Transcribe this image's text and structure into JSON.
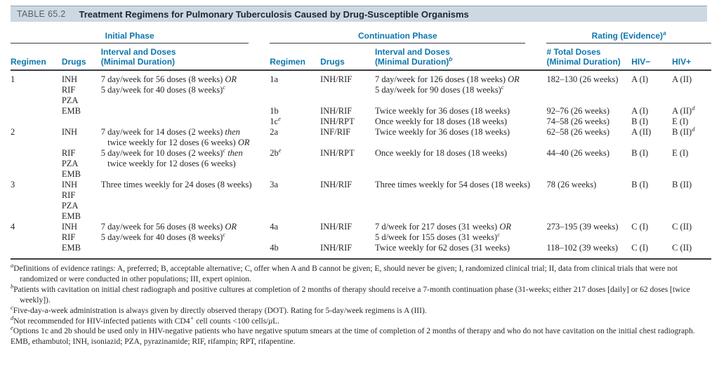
{
  "colors": {
    "c-blue": "#0e76ad",
    "c-band": "#ccd8e2",
    "c-band-border": "#8fa3b0",
    "c-dark": "#3a3f45",
    "c-title": "#1c2733",
    "c-label": "#56616b",
    "c-text": "#26262a"
  },
  "table": {
    "id_label": "TABLE 65.2",
    "title": "Treatment Regimens for Pulmonary Tuberculosis Caused by Drug-Susceptible Organisms",
    "groups": [
      {
        "label": "Initial Phase",
        "span": 3
      },
      {
        "label": "Continuation Phase",
        "span": 3
      },
      {
        "label": "Rating (Evidence)^{a}",
        "span": 3
      }
    ],
    "headers": [
      "Regimen",
      "Drugs",
      "Interval and Doses\n(Minimal Duration)",
      "Regimen",
      "Drugs",
      "Interval and Doses\n(Minimal Duration)^{b}",
      "# Total Doses\n(Minimal Duration)",
      "HIV−",
      "HIV+"
    ],
    "rows": [
      [
        "1",
        "INH",
        "7 day/week for 56 doses (8 weeks) *OR*",
        "1a",
        "INH/RIF",
        "7 day/week for 126 doses (18 weeks) *OR*",
        "182–130 (26 weeks)",
        "A (I)",
        "A (II)"
      ],
      [
        "",
        "RIF",
        "5 day/week for 40 doses (8 weeks)^{c}",
        "",
        "",
        "5 day/week for 90 doses (18 weeks)^{c}",
        "",
        "",
        ""
      ],
      [
        "",
        "PZA",
        "",
        "",
        "",
        "",
        "",
        "",
        ""
      ],
      [
        "",
        "EMB",
        "",
        "1b",
        "INH/RIF",
        "Twice weekly for 36 doses (18 weeks)",
        "92–76 (26 weeks)",
        "A (I)",
        "A (II)^{d}"
      ],
      [
        "",
        "",
        "",
        "1c^{e}",
        "INH/RPT",
        "Once weekly for 18 doses (18 weeks)",
        "74–58 (26 weeks)",
        "B (I)",
        "E (I)"
      ],
      [
        "2",
        "INH",
        "7 day/week for 14 doses (2 weeks) *then*",
        "2a",
        "INF/RIF",
        "Twice weekly for 36 doses (18 weeks)",
        "62–58 (26 weeks)",
        "A (II)",
        "B (II)^{d}"
      ],
      [
        "",
        "",
        "   twice weekly for 12 doses (6 weeks) *OR*",
        "",
        "",
        "",
        "",
        "",
        ""
      ],
      [
        "",
        "RIF",
        "5 day/week for 10 doses (2 weeks)^{c} *then*",
        "2b^{e}",
        "INH/RPT",
        "Once weekly for 18 doses (18 weeks)",
        "44–40 (26 weeks)",
        "B (I)",
        "E (I)"
      ],
      [
        "",
        "PZA",
        "   twice weekly for 12 doses (6 weeks)",
        "",
        "",
        "",
        "",
        "",
        ""
      ],
      [
        "",
        "EMB",
        "",
        "",
        "",
        "",
        "",
        "",
        ""
      ],
      [
        "3",
        "INH",
        "Three times weekly for 24 doses (8 weeks)",
        "3a",
        "INH/RIF",
        "Three times weekly for 54 doses (18 weeks)",
        "78 (26 weeks)",
        "B (I)",
        "B (II)"
      ],
      [
        "",
        "RIF",
        "",
        "",
        "",
        "",
        "",
        "",
        ""
      ],
      [
        "",
        "PZA",
        "",
        "",
        "",
        "",
        "",
        "",
        ""
      ],
      [
        "",
        "EMB",
        "",
        "",
        "",
        "",
        "",
        "",
        ""
      ],
      [
        "4",
        "INH",
        "7 day/week for 56 doses (8 weeks) *OR*",
        "4a",
        "INH/RIF",
        "7 d/week for 217 doses (31 weeks) *OR*",
        "273–195 (39 weeks)",
        "C (I)",
        "C (II)"
      ],
      [
        "",
        "RIF",
        "5 day/week for 40 doses (8 weeks)^{c}",
        "",
        "",
        "5 d/week for 155 doses (31 weeks)^{c}",
        "",
        "",
        ""
      ],
      [
        "",
        "EMB",
        "",
        "4b",
        "INH/RIF",
        "Twice weekly for 62 doses (31 weeks)",
        "118–102 (39 weeks)",
        "C (I)",
        "C (II)"
      ]
    ]
  },
  "footnotes": [
    {
      "marker": "a",
      "text": "Definitions of evidence ratings: A, preferred; B, acceptable alternative; C, offer when A and B cannot be given; E, should never be given; I, randomized clinical trial; II, data from clinical trials that were not randomized or were conducted in other populations; III, expert opinion."
    },
    {
      "marker": "b",
      "text": "Patients with cavitation on initial chest radiograph and positive cultures at completion of 2 months of therapy should receive a 7-month continuation phase (31-weeks; either 217 doses [daily] or 62 doses [twice weekly])."
    },
    {
      "marker": "c",
      "text": "Five-day-a-week administration is always given by directly observed therapy (DOT). Rating for 5-day/week regimens is A (III)."
    },
    {
      "marker": "d",
      "text": "Not recommended for HIV-infected patients with CD4^{+} cell counts <100 cells/*μ*L."
    },
    {
      "marker": "e",
      "text": "Options 1c and 2b should be used only in HIV-negative patients who have negative sputum smears at the time of completion of 2 months of therapy and who do not have cavitation on the initial chest radiograph."
    },
    {
      "marker": "",
      "text": "EMB, ethambutol; INH, isoniazid; PZA, pyrazinamide; RIF, rifampin; RPT, rifapentine."
    }
  ]
}
